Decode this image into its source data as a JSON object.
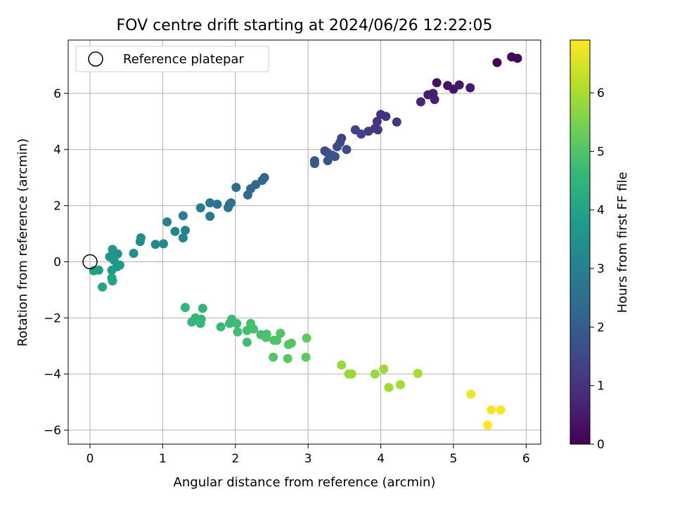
{
  "chart_data": {
    "type": "scatter",
    "title": "FOV centre drift starting at 2024/06/26 12:22:05",
    "xlabel": "Angular distance from reference (arcmin)",
    "ylabel": "Rotation from reference (arcmin)",
    "xlim": [
      -0.3,
      6.2
    ],
    "ylim": [
      -6.5,
      7.9
    ],
    "xticks": [
      0,
      1,
      2,
      3,
      4,
      5,
      6
    ],
    "yticks": [
      -6,
      -4,
      -2,
      0,
      2,
      4,
      6
    ],
    "grid": true,
    "legend": {
      "position": "top-left",
      "entries": [
        "Reference platepar"
      ]
    },
    "reference_point": {
      "x": 0,
      "y": 0
    },
    "colorbar": {
      "label": "Hours from first FF file",
      "colormap": "viridis",
      "range": [
        0,
        6.9
      ],
      "ticks": [
        0,
        1,
        2,
        3,
        4,
        5,
        6
      ]
    },
    "points": [
      [
        5.6,
        7.1,
        0.0
      ],
      [
        5.8,
        7.3,
        0.05
      ],
      [
        5.88,
        7.25,
        0.1
      ],
      [
        4.77,
        6.38,
        0.3
      ],
      [
        4.92,
        6.28,
        0.35
      ],
      [
        5.0,
        6.15,
        0.4
      ],
      [
        5.08,
        6.3,
        0.45
      ],
      [
        5.23,
        6.2,
        0.5
      ],
      [
        4.65,
        5.95,
        0.55
      ],
      [
        4.72,
        6.0,
        0.6
      ],
      [
        4.74,
        5.78,
        0.65
      ],
      [
        4.55,
        5.7,
        0.7
      ],
      [
        4.0,
        5.25,
        0.95
      ],
      [
        4.07,
        5.18,
        1.0
      ],
      [
        3.95,
        5.0,
        1.05
      ],
      [
        4.22,
        4.98,
        1.1
      ],
      [
        3.92,
        4.75,
        1.15
      ],
      [
        3.96,
        4.7,
        1.2
      ],
      [
        3.83,
        4.65,
        1.25
      ],
      [
        3.65,
        4.7,
        1.3
      ],
      [
        3.73,
        4.55,
        1.35
      ],
      [
        3.46,
        4.4,
        1.4
      ],
      [
        3.44,
        4.25,
        1.45
      ],
      [
        3.4,
        4.1,
        1.5
      ],
      [
        3.53,
        4.0,
        1.55
      ],
      [
        3.23,
        3.95,
        1.6
      ],
      [
        3.26,
        3.9,
        1.65
      ],
      [
        3.33,
        3.8,
        1.7
      ],
      [
        3.37,
        3.75,
        1.75
      ],
      [
        3.27,
        3.6,
        1.8
      ],
      [
        3.09,
        3.6,
        1.85
      ],
      [
        3.09,
        3.5,
        1.9
      ],
      [
        2.4,
        3.0,
        2.2
      ],
      [
        2.37,
        2.9,
        2.25
      ],
      [
        2.28,
        2.75,
        2.3
      ],
      [
        2.21,
        2.6,
        2.35
      ],
      [
        2.17,
        2.38,
        2.4
      ],
      [
        2.01,
        2.65,
        2.45
      ],
      [
        1.94,
        2.1,
        2.55
      ],
      [
        1.92,
        2.05,
        2.6
      ],
      [
        1.9,
        1.93,
        2.65
      ],
      [
        1.75,
        2.05,
        2.7
      ],
      [
        1.65,
        2.1,
        2.75
      ],
      [
        1.65,
        1.62,
        2.8
      ],
      [
        1.52,
        1.92,
        2.85
      ],
      [
        1.28,
        1.64,
        2.95
      ],
      [
        1.31,
        1.12,
        3.0
      ],
      [
        1.06,
        1.42,
        3.05
      ],
      [
        1.17,
        1.08,
        3.1
      ],
      [
        1.28,
        0.85,
        3.15
      ],
      [
        1.01,
        0.64,
        3.2
      ],
      [
        0.9,
        0.62,
        3.25
      ],
      [
        0.7,
        0.85,
        3.3
      ],
      [
        0.69,
        0.72,
        3.35
      ],
      [
        0.6,
        0.3,
        3.4
      ],
      [
        0.38,
        0.28,
        3.5
      ],
      [
        0.31,
        0.44,
        3.55
      ],
      [
        0.27,
        0.18,
        3.6
      ],
      [
        0.33,
        0.05,
        3.65
      ],
      [
        0.41,
        -0.12,
        3.7
      ],
      [
        0.37,
        -0.18,
        3.75
      ],
      [
        0.3,
        -0.3,
        3.8
      ],
      [
        0.12,
        -0.3,
        3.85
      ],
      [
        0.05,
        -0.32,
        3.9
      ],
      [
        0.3,
        -0.58,
        3.95
      ],
      [
        0.31,
        -0.68,
        4.0
      ],
      [
        0.17,
        -0.9,
        4.05
      ],
      [
        1.31,
        -1.63,
        4.5
      ],
      [
        1.55,
        -1.66,
        4.52
      ],
      [
        1.45,
        -2.0,
        4.55
      ],
      [
        1.53,
        -2.05,
        4.58
      ],
      [
        1.4,
        -2.15,
        4.6
      ],
      [
        1.52,
        -2.2,
        4.62
      ],
      [
        1.8,
        -2.32,
        4.65
      ],
      [
        1.95,
        -2.05,
        4.68
      ],
      [
        1.92,
        -2.2,
        4.7
      ],
      [
        2.02,
        -2.2,
        4.72
      ],
      [
        2.03,
        -2.5,
        4.75
      ],
      [
        2.16,
        -2.45,
        4.78
      ],
      [
        2.16,
        -2.87,
        4.8
      ],
      [
        2.21,
        -2.2,
        4.82
      ],
      [
        2.25,
        -2.4,
        4.85
      ],
      [
        2.35,
        -2.6,
        4.88
      ],
      [
        2.43,
        -2.58,
        4.9
      ],
      [
        2.42,
        -2.7,
        4.92
      ],
      [
        2.53,
        -2.8,
        4.95
      ],
      [
        2.57,
        -2.8,
        4.97
      ],
      [
        2.62,
        -2.55,
        5.0
      ],
      [
        2.52,
        -3.4,
        5.02
      ],
      [
        2.73,
        -2.95,
        5.05
      ],
      [
        2.77,
        -2.9,
        5.07
      ],
      [
        2.72,
        -3.45,
        5.1
      ],
      [
        2.97,
        -3.4,
        5.12
      ],
      [
        2.98,
        -2.72,
        5.15
      ],
      [
        3.46,
        -3.68,
        5.8
      ],
      [
        3.56,
        -4.0,
        5.82
      ],
      [
        3.6,
        -4.0,
        5.85
      ],
      [
        3.92,
        -4.0,
        5.88
      ],
      [
        4.04,
        -3.82,
        5.9
      ],
      [
        4.11,
        -4.48,
        5.93
      ],
      [
        4.27,
        -4.38,
        5.95
      ],
      [
        4.51,
        -3.98,
        5.97
      ],
      [
        5.24,
        -4.72,
        6.7
      ],
      [
        5.52,
        -5.28,
        6.78
      ],
      [
        5.65,
        -5.28,
        6.82
      ],
      [
        5.47,
        -5.82,
        6.88
      ]
    ]
  }
}
